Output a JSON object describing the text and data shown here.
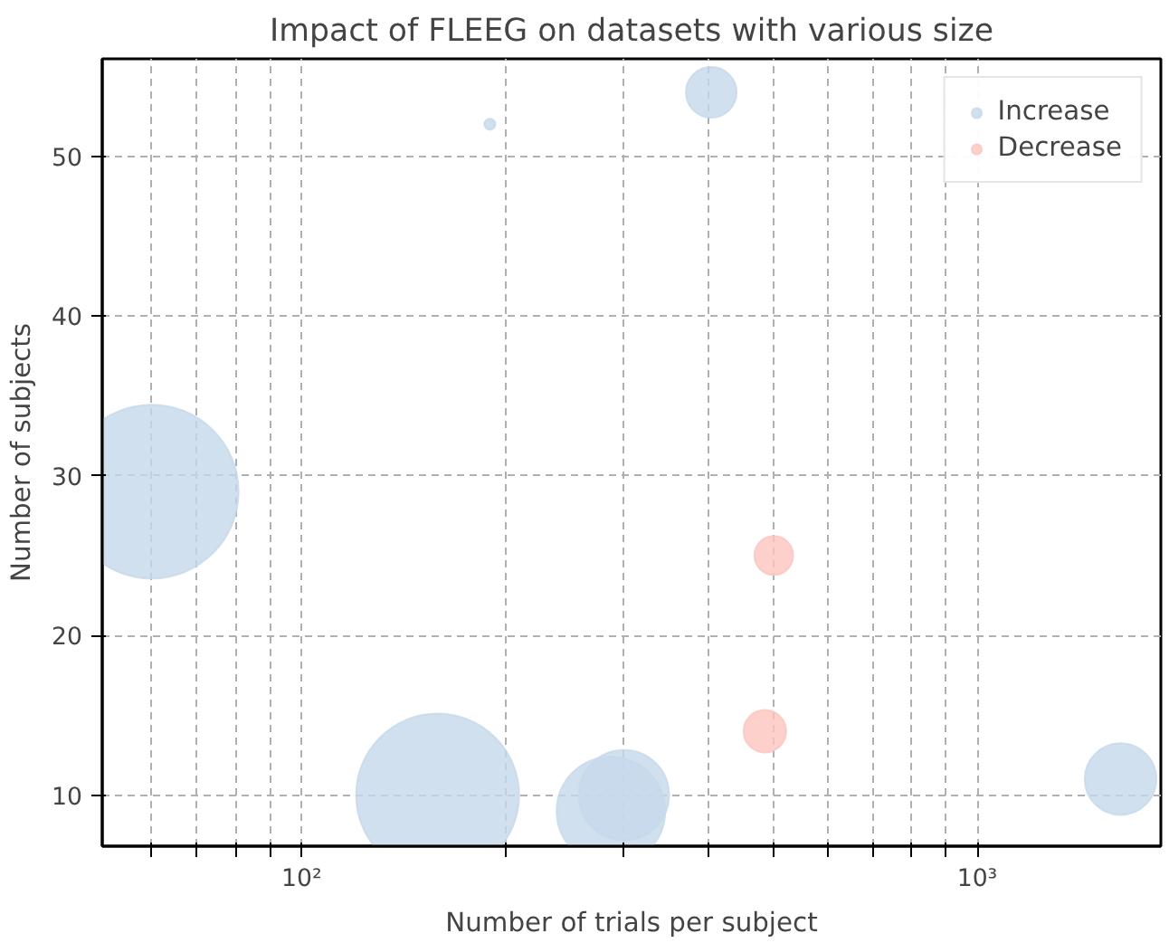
{
  "chart_data": {
    "type": "bubble",
    "title": "Impact of FLEEG on datasets with various size",
    "xlabel": "Number of trials per subject",
    "ylabel": "Number of subjects",
    "log": "x",
    "xlim": [
      50.7,
      1870
    ],
    "ylim": [
      6.8,
      56.1
    ],
    "xticks": [
      {
        "value": 60,
        "label": null
      },
      {
        "value": 70,
        "label": null
      },
      {
        "value": 80,
        "label": null
      },
      {
        "value": 90,
        "label": null
      },
      {
        "value": 100,
        "label": "10²"
      },
      {
        "value": 200,
        "label": null
      },
      {
        "value": 300,
        "label": null
      },
      {
        "value": 400,
        "label": null
      },
      {
        "value": 500,
        "label": null
      },
      {
        "value": 600,
        "label": null
      },
      {
        "value": 700,
        "label": null
      },
      {
        "value": 800,
        "label": null
      },
      {
        "value": 900,
        "label": null
      },
      {
        "value": 1000,
        "label": "10³"
      }
    ],
    "yticks": [
      10,
      20,
      30,
      40,
      50
    ],
    "grid": true,
    "legend": "top right",
    "series": [
      {
        "name": "Increase",
        "color": "#c6d8ea",
        "x": [
          60,
          159,
          287,
          300,
          404,
          190,
          1630
        ],
        "values": [
          29,
          10,
          9,
          10,
          54,
          52,
          11
        ],
        "sizes": [
          1,
          0.88,
          0.39,
          0.27,
          0.085,
          0.004,
          0.17
        ]
      },
      {
        "name": "Decrease",
        "color": "#fcc4bf",
        "x": [
          485,
          500
        ],
        "values": [
          14,
          25
        ],
        "sizes": [
          0.06,
          0.05
        ]
      }
    ]
  }
}
